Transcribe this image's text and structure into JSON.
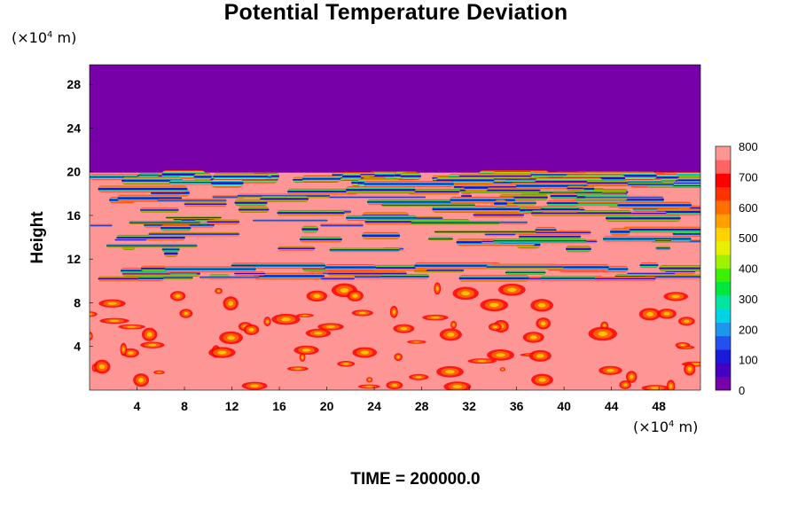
{
  "chart_data": {
    "type": "heatmap",
    "title": "Potential Temperature Deviation",
    "ylabel": "Height",
    "x_unit": {
      "prefix": "(×10",
      "exp": "4",
      "suffix": " m)"
    },
    "y_unit": {
      "prefix": "(×10",
      "exp": "4",
      "suffix": " m)"
    },
    "x_ticks": [
      4,
      8,
      12,
      16,
      20,
      24,
      28,
      32,
      36,
      40,
      44,
      48
    ],
    "y_ticks": [
      4,
      8,
      12,
      16,
      20,
      24,
      28
    ],
    "xlim": [
      0,
      51.5
    ],
    "ylim": [
      0,
      29.8
    ],
    "colorbar": {
      "ticks": [
        0,
        100,
        200,
        300,
        400,
        500,
        600,
        700,
        800
      ],
      "range": [
        0,
        800
      ],
      "colors": [
        "#7700a8",
        "#4400c0",
        "#1a1ad8",
        "#2550f0",
        "#1e96f0",
        "#00d2e6",
        "#00e6a0",
        "#00e640",
        "#3cf000",
        "#a0f000",
        "#e6f000",
        "#ffd200",
        "#ffa000",
        "#ff6e00",
        "#ff3200",
        "#ff0000",
        "#ff6464",
        "#ff9696"
      ]
    },
    "regions": {
      "upper_uniform": {
        "y_min": 20,
        "y_max": 29.8,
        "value": 0
      },
      "lower_uniform": {
        "y_min": 0,
        "y_max": 20,
        "value": 800
      }
    },
    "footer": "TIME = 200000.0"
  }
}
